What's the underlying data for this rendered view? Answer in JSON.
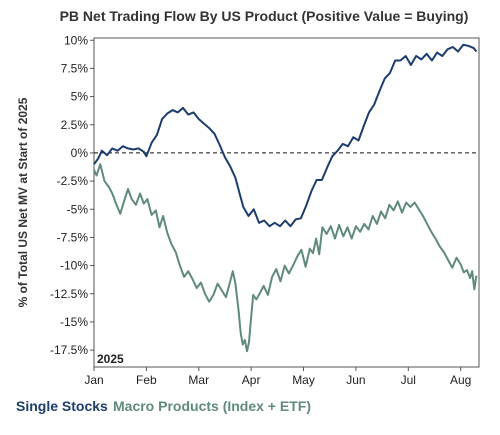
{
  "chart_data": {
    "type": "line",
    "title": "PB Net Trading Flow By US Product (Positive Value = Buying)",
    "ylabel": "% of Total US Net MV at Start of 2025",
    "xlabel": "",
    "year_label": "2025",
    "ylim": [
      -19.0,
      10.2
    ],
    "xlim": [
      0,
      7.35
    ],
    "y_ticks": [
      10,
      7.5,
      5,
      2.5,
      0,
      -2.5,
      -5,
      -7.5,
      -10,
      -12.5,
      -15,
      -17.5
    ],
    "y_tick_labels": [
      "10%",
      "7.5%",
      "5%",
      "2.5%",
      "0%",
      "-2.5%",
      "-5%",
      "-7.5%",
      "-10%",
      "-12.5%",
      "-15%",
      "-17.5%"
    ],
    "x_ticks": [
      0,
      1,
      2,
      3,
      4,
      5,
      6,
      7
    ],
    "x_tick_labels": [
      "Jan",
      "Feb",
      "Mar",
      "Apr",
      "May",
      "Jun",
      "Jul",
      "Aug"
    ],
    "zero_line": "dashed",
    "grid": false,
    "legend_position": "bottom-left",
    "series": [
      {
        "name": "Single Stocks",
        "color": "#1c3d6e",
        "points": [
          [
            0.0,
            -1.0
          ],
          [
            0.08,
            -0.5
          ],
          [
            0.15,
            0.2
          ],
          [
            0.25,
            -0.2
          ],
          [
            0.35,
            0.4
          ],
          [
            0.45,
            0.2
          ],
          [
            0.55,
            0.6
          ],
          [
            0.65,
            0.4
          ],
          [
            0.75,
            0.3
          ],
          [
            0.85,
            0.4
          ],
          [
            0.95,
            0.1
          ],
          [
            1.0,
            -0.3
          ],
          [
            1.1,
            0.9
          ],
          [
            1.2,
            1.6
          ],
          [
            1.3,
            3.0
          ],
          [
            1.4,
            3.5
          ],
          [
            1.5,
            3.8
          ],
          [
            1.6,
            3.6
          ],
          [
            1.7,
            4.0
          ],
          [
            1.8,
            3.4
          ],
          [
            1.9,
            3.6
          ],
          [
            2.0,
            3.0
          ],
          [
            2.1,
            2.6
          ],
          [
            2.2,
            2.2
          ],
          [
            2.3,
            1.7
          ],
          [
            2.4,
            0.7
          ],
          [
            2.5,
            -0.4
          ],
          [
            2.6,
            -1.2
          ],
          [
            2.7,
            -2.2
          ],
          [
            2.78,
            -3.6
          ],
          [
            2.85,
            -4.8
          ],
          [
            2.95,
            -5.6
          ],
          [
            3.05,
            -5.0
          ],
          [
            3.15,
            -6.2
          ],
          [
            3.25,
            -6.0
          ],
          [
            3.35,
            -6.5
          ],
          [
            3.45,
            -6.2
          ],
          [
            3.55,
            -6.5
          ],
          [
            3.65,
            -6.0
          ],
          [
            3.75,
            -6.5
          ],
          [
            3.85,
            -5.9
          ],
          [
            3.95,
            -5.8
          ],
          [
            4.05,
            -4.7
          ],
          [
            4.15,
            -3.4
          ],
          [
            4.25,
            -2.4
          ],
          [
            4.35,
            -2.4
          ],
          [
            4.45,
            -1.3
          ],
          [
            4.55,
            -0.3
          ],
          [
            4.65,
            0.2
          ],
          [
            4.75,
            0.8
          ],
          [
            4.85,
            0.6
          ],
          [
            4.95,
            1.4
          ],
          [
            5.05,
            1.1
          ],
          [
            5.15,
            2.4
          ],
          [
            5.25,
            3.6
          ],
          [
            5.35,
            4.3
          ],
          [
            5.45,
            5.5
          ],
          [
            5.55,
            6.6
          ],
          [
            5.65,
            7.1
          ],
          [
            5.75,
            8.2
          ],
          [
            5.85,
            8.2
          ],
          [
            5.95,
            8.6
          ],
          [
            6.05,
            7.8
          ],
          [
            6.15,
            8.6
          ],
          [
            6.25,
            8.3
          ],
          [
            6.35,
            8.8
          ],
          [
            6.45,
            8.2
          ],
          [
            6.55,
            8.9
          ],
          [
            6.65,
            8.6
          ],
          [
            6.75,
            9.2
          ],
          [
            6.85,
            9.4
          ],
          [
            6.95,
            9.0
          ],
          [
            7.05,
            9.6
          ],
          [
            7.15,
            9.5
          ],
          [
            7.25,
            9.3
          ],
          [
            7.3,
            9.0
          ]
        ]
      },
      {
        "name": "Macro Products (Index + ETF)",
        "color": "#5f8a7d",
        "points": [
          [
            0.0,
            -1.5
          ],
          [
            0.05,
            -2.0
          ],
          [
            0.12,
            -1.0
          ],
          [
            0.2,
            -2.5
          ],
          [
            0.28,
            -3.0
          ],
          [
            0.35,
            -3.6
          ],
          [
            0.42,
            -4.5
          ],
          [
            0.5,
            -5.4
          ],
          [
            0.58,
            -4.2
          ],
          [
            0.65,
            -3.2
          ],
          [
            0.72,
            -4.1
          ],
          [
            0.8,
            -4.6
          ],
          [
            0.88,
            -3.6
          ],
          [
            0.95,
            -4.5
          ],
          [
            1.02,
            -4.1
          ],
          [
            1.1,
            -5.5
          ],
          [
            1.18,
            -5.1
          ],
          [
            1.25,
            -6.6
          ],
          [
            1.32,
            -5.6
          ],
          [
            1.4,
            -7.1
          ],
          [
            1.48,
            -8.1
          ],
          [
            1.56,
            -8.8
          ],
          [
            1.64,
            -10.0
          ],
          [
            1.72,
            -11.0
          ],
          [
            1.8,
            -10.5
          ],
          [
            1.88,
            -11.2
          ],
          [
            1.96,
            -12.0
          ],
          [
            2.04,
            -11.5
          ],
          [
            2.12,
            -12.5
          ],
          [
            2.2,
            -13.2
          ],
          [
            2.28,
            -12.6
          ],
          [
            2.36,
            -11.6
          ],
          [
            2.44,
            -12.2
          ],
          [
            2.52,
            -12.8
          ],
          [
            2.6,
            -11.4
          ],
          [
            2.65,
            -10.5
          ],
          [
            2.7,
            -11.6
          ],
          [
            2.76,
            -14.0
          ],
          [
            2.8,
            -16.0
          ],
          [
            2.84,
            -17.0
          ],
          [
            2.88,
            -16.6
          ],
          [
            2.92,
            -17.6
          ],
          [
            2.96,
            -16.8
          ],
          [
            3.0,
            -14.6
          ],
          [
            3.04,
            -12.6
          ],
          [
            3.1,
            -13.0
          ],
          [
            3.16,
            -12.5
          ],
          [
            3.24,
            -11.8
          ],
          [
            3.32,
            -12.6
          ],
          [
            3.4,
            -11.0
          ],
          [
            3.48,
            -10.3
          ],
          [
            3.56,
            -11.4
          ],
          [
            3.64,
            -10.0
          ],
          [
            3.72,
            -10.7
          ],
          [
            3.8,
            -10.0
          ],
          [
            3.88,
            -9.2
          ],
          [
            3.96,
            -8.6
          ],
          [
            4.04,
            -10.1
          ],
          [
            4.12,
            -8.5
          ],
          [
            4.18,
            -8.9
          ],
          [
            4.24,
            -7.6
          ],
          [
            4.3,
            -9.0
          ],
          [
            4.36,
            -6.6
          ],
          [
            4.44,
            -7.2
          ],
          [
            4.52,
            -6.5
          ],
          [
            4.6,
            -7.6
          ],
          [
            4.68,
            -6.4
          ],
          [
            4.76,
            -7.4
          ],
          [
            4.84,
            -6.6
          ],
          [
            4.92,
            -7.6
          ],
          [
            5.0,
            -6.5
          ],
          [
            5.08,
            -7.0
          ],
          [
            5.16,
            -6.3
          ],
          [
            5.24,
            -6.8
          ],
          [
            5.32,
            -5.6
          ],
          [
            5.4,
            -6.3
          ],
          [
            5.48,
            -5.2
          ],
          [
            5.56,
            -5.8
          ],
          [
            5.64,
            -4.6
          ],
          [
            5.72,
            -5.1
          ],
          [
            5.8,
            -4.3
          ],
          [
            5.88,
            -5.3
          ],
          [
            5.96,
            -4.4
          ],
          [
            6.04,
            -4.8
          ],
          [
            6.12,
            -4.4
          ],
          [
            6.2,
            -5.0
          ],
          [
            6.28,
            -5.6
          ],
          [
            6.36,
            -6.3
          ],
          [
            6.44,
            -7.0
          ],
          [
            6.52,
            -7.6
          ],
          [
            6.6,
            -8.3
          ],
          [
            6.68,
            -8.8
          ],
          [
            6.76,
            -9.5
          ],
          [
            6.84,
            -10.2
          ],
          [
            6.92,
            -9.3
          ],
          [
            7.0,
            -9.9
          ],
          [
            7.06,
            -10.6
          ],
          [
            7.12,
            -10.4
          ],
          [
            7.18,
            -11.1
          ],
          [
            7.22,
            -10.5
          ],
          [
            7.26,
            -12.1
          ],
          [
            7.3,
            -10.9
          ]
        ]
      }
    ]
  }
}
